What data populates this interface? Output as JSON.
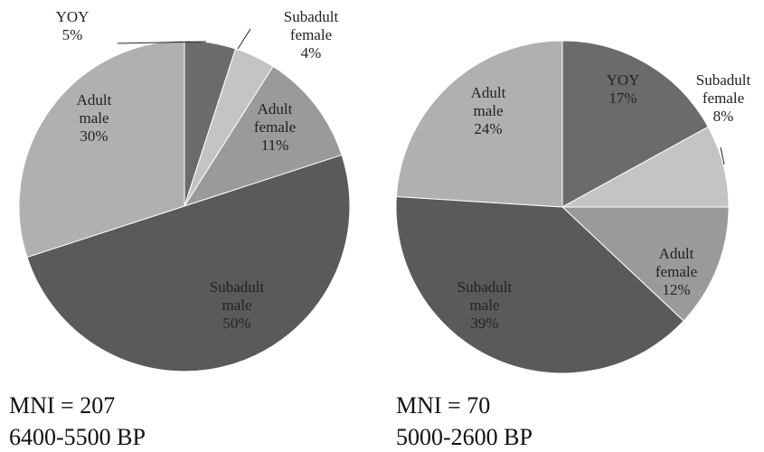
{
  "chart_data": [
    {
      "type": "pie",
      "caption": [
        "MNI = 207",
        "6400-5500 BP"
      ],
      "slices": [
        {
          "lines": [
            "YOY",
            "5%"
          ],
          "value": 5,
          "color": "#6b6b6b"
        },
        {
          "lines": [
            "Subadult",
            "female",
            "4%"
          ],
          "value": 4,
          "color": "#c4c4c4"
        },
        {
          "lines": [
            "Adult",
            "female",
            "11%"
          ],
          "value": 11,
          "color": "#9a9a9a"
        },
        {
          "lines": [
            "Subadult",
            "male",
            "50%"
          ],
          "value": 50,
          "color": "#5a5a5a"
        },
        {
          "lines": [
            "Adult",
            "male",
            "30%"
          ],
          "value": 30,
          "color": "#b0b0b0"
        }
      ]
    },
    {
      "type": "pie",
      "caption": [
        "MNI = 70",
        "5000-2600 BP"
      ],
      "slices": [
        {
          "lines": [
            "YOY",
            "17%"
          ],
          "value": 17,
          "color": "#6b6b6b"
        },
        {
          "lines": [
            "Subadult",
            "female",
            "8%"
          ],
          "value": 8,
          "color": "#c4c4c4"
        },
        {
          "lines": [
            "Adult",
            "female",
            "12%"
          ],
          "value": 12,
          "color": "#9a9a9a"
        },
        {
          "lines": [
            "Subadult",
            "male",
            "39%"
          ],
          "value": 39,
          "color": "#5a5a5a"
        },
        {
          "lines": [
            "Adult",
            "male",
            "24%"
          ],
          "value": 24,
          "color": "#b0b0b0"
        }
      ]
    }
  ]
}
